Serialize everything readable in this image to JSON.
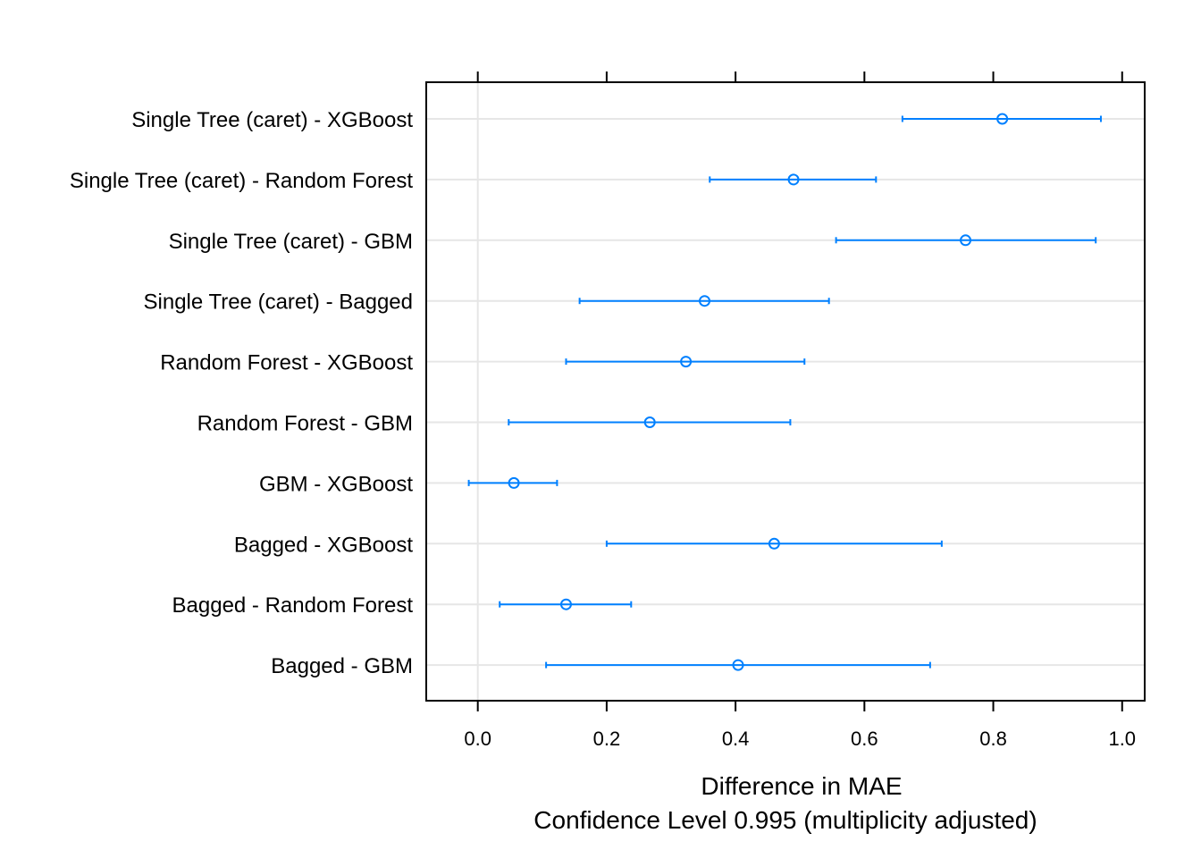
{
  "chart_data": {
    "type": "dotplot-interval",
    "xlabel": "Difference in MAE",
    "xlabel_sub": "Confidence Level 0.995  (multiplicity adjusted)",
    "xlim": [
      -0.08,
      1.035
    ],
    "xticks": [
      0.0,
      0.2,
      0.4,
      0.6,
      0.8,
      1.0
    ],
    "xtick_labels": [
      "0.0",
      "0.2",
      "0.4",
      "0.6",
      "0.8",
      "1.0"
    ],
    "reference_line": 0,
    "grid": true,
    "colors": {
      "series": "#0080FF",
      "grid": "#E6E6E6",
      "axis": "#000000"
    },
    "categories": [
      "Single Tree (caret) - XGBoost",
      "Single Tree (caret) - Random Forest",
      "Single Tree (caret) - GBM",
      "Single Tree (caret) - Bagged",
      "Random Forest - XGBoost",
      "Random Forest - GBM",
      "GBM - XGBoost",
      "Bagged - XGBoost",
      "Bagged - Random Forest",
      "Bagged - GBM"
    ],
    "estimate": [
      0.814,
      0.49,
      0.757,
      0.352,
      0.323,
      0.267,
      0.056,
      0.46,
      0.137,
      0.404
    ],
    "lower": [
      0.659,
      0.36,
      0.556,
      0.158,
      0.137,
      0.048,
      -0.014,
      0.2,
      0.034,
      0.106
    ],
    "upper": [
      0.967,
      0.618,
      0.959,
      0.545,
      0.507,
      0.485,
      0.123,
      0.72,
      0.238,
      0.702
    ]
  }
}
